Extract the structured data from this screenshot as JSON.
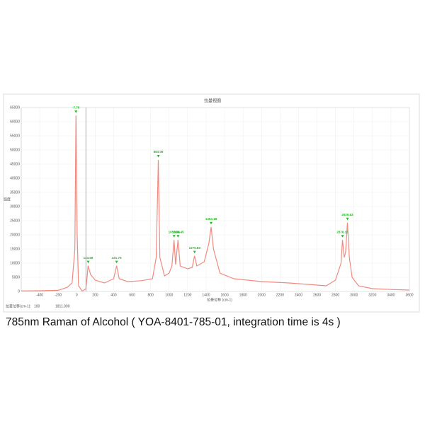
{
  "chart_data": {
    "type": "line",
    "title": "拉曼视图",
    "y_label": "强度",
    "x_label": "拉曼位移 (cm-1)",
    "caption": "785nm Raman of Alcohol ( YOA-8401-785-01, integration time is 4s )",
    "status_label": "拉曼位移(cm-1):",
    "cursor": 100,
    "status_value": "1811.000",
    "color": "#f08a80",
    "marker_color": "#22bb22",
    "cursor_color": "#9bb8b0",
    "grid": true,
    "xlim": [
      -600,
      3600
    ],
    "xticks": [
      -400,
      -200,
      0,
      200,
      400,
      600,
      800,
      1000,
      1200,
      1400,
      1600,
      1800,
      2000,
      2200,
      2400,
      2600,
      2800,
      3000,
      3200,
      3400,
      3600
    ],
    "ylim": [
      0,
      65000
    ],
    "yticks": [
      0,
      5000,
      10000,
      15000,
      20000,
      25000,
      30000,
      35000,
      40000,
      45000,
      50000,
      55000,
      60000,
      65000
    ],
    "x": [
      -600,
      -400,
      -200,
      -100,
      -50,
      -20,
      -8,
      5,
      20,
      60,
      100,
      124,
      150,
      200,
      300,
      400,
      432,
      460,
      550,
      700,
      820,
      860,
      883,
      900,
      950,
      1000,
      1030,
      1053,
      1070,
      1096,
      1120,
      1200,
      1250,
      1275,
      1300,
      1380,
      1430,
      1454,
      1480,
      1550,
      1700,
      2000,
      2300,
      2500,
      2700,
      2800,
      2860,
      2876,
      2895,
      2910,
      2929,
      2950,
      2980,
      3050,
      3200,
      3400,
      3600
    ],
    "values": [
      200,
      250,
      400,
      1500,
      3000,
      15000,
      62200,
      20000,
      2000,
      100,
      1000,
      9100,
      6000,
      4000,
      3000,
      4500,
      9100,
      4500,
      3500,
      3800,
      4500,
      12000,
      46500,
      12000,
      5500,
      6500,
      9000,
      18200,
      9500,
      18200,
      9000,
      8000,
      8500,
      12600,
      9000,
      10500,
      17000,
      22800,
      15000,
      6500,
      4500,
      3500,
      3000,
      2500,
      2000,
      4000,
      10000,
      18200,
      12000,
      14000,
      24300,
      12000,
      5000,
      2000,
      1000,
      700,
      500
    ],
    "peaks": [
      {
        "x": -7.78,
        "y": 62200
      },
      {
        "x": 124.58,
        "y": 9100
      },
      {
        "x": 431.79,
        "y": 9100
      },
      {
        "x": 883.08,
        "y": 46500
      },
      {
        "x": 1053.68,
        "y": 18200
      },
      {
        "x": 1096.45,
        "y": 18200
      },
      {
        "x": 1275.83,
        "y": 12600
      },
      {
        "x": 1454.18,
        "y": 22800
      },
      {
        "x": 2876.16,
        "y": 18200
      },
      {
        "x": 2929.83,
        "y": 24300
      }
    ]
  }
}
